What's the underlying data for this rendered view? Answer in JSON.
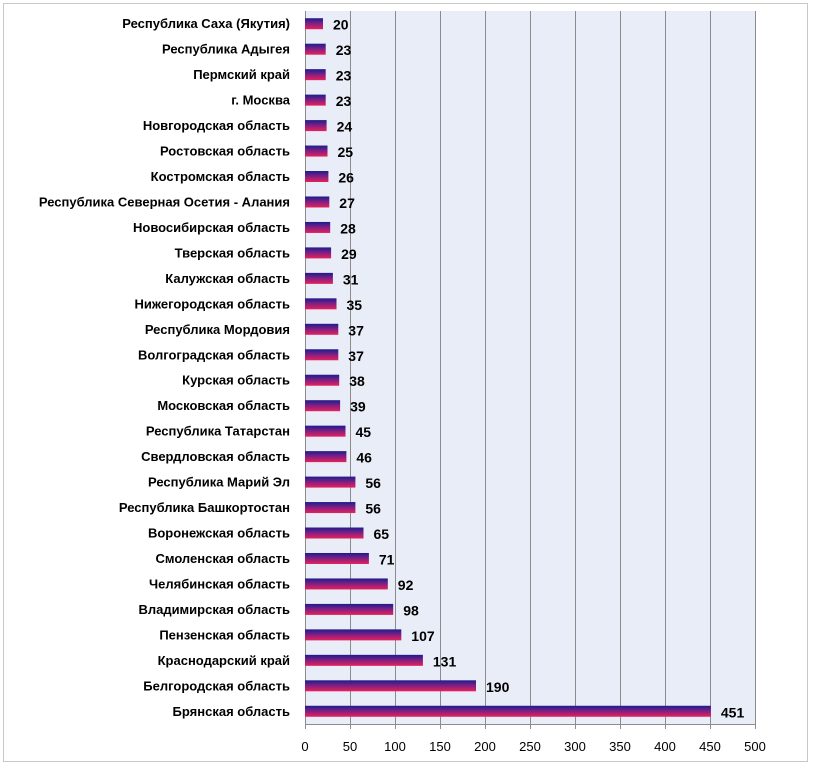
{
  "chart_data": {
    "type": "bar",
    "orientation": "horizontal",
    "title": "",
    "xlabel": "",
    "ylabel": "",
    "xlim": [
      0,
      500
    ],
    "xticks": [
      0,
      50,
      100,
      150,
      200,
      250,
      300,
      350,
      400,
      450,
      500
    ],
    "xtick_labels": [
      "0",
      "50",
      "100",
      "150",
      "200",
      "250",
      "300",
      "350",
      "400",
      "450",
      "500"
    ],
    "grid": true,
    "legend": "none",
    "colors": {
      "plot_background": "#e9edf7",
      "gridline": "#8c8c8c",
      "bar_top": "#1c1c8c",
      "bar_bottom": "#e8205a"
    },
    "categories": [
      "Республика Саха (Якутия)",
      "Республика Адыгея",
      "Пермский край",
      "г. Москва",
      "Новгородская область",
      "Ростовская область",
      "Костромская область",
      "Республика Северная Осетия - Алания",
      "Новосибирская область",
      "Тверская область",
      "Калужская область",
      "Нижегородская область",
      "Республика Мордовия",
      "Волгоградская область",
      "Курская область",
      "Московская область",
      "Республика Татарстан",
      "Свердловская область",
      "Республика Марий Эл",
      "Республика Башкортостан",
      "Воронежская область",
      "Смоленская область",
      "Челябинская область",
      "Владимирская область",
      "Пензенская область",
      "Краснодарский край",
      "Белгородская область",
      "Брянская область"
    ],
    "values": [
      20,
      23,
      23,
      23,
      24,
      25,
      26,
      27,
      28,
      29,
      31,
      35,
      37,
      37,
      38,
      39,
      45,
      46,
      56,
      56,
      65,
      71,
      92,
      98,
      107,
      131,
      190,
      451
    ],
    "data_labels": [
      "20",
      "23",
      "23",
      "23",
      "24",
      "25",
      "26",
      "27",
      "28",
      "29",
      "31",
      "35",
      "37",
      "37",
      "38",
      "39",
      "45",
      "46",
      "56",
      "56",
      "65",
      "71",
      "92",
      "98",
      "107",
      "131",
      "190",
      "451"
    ]
  }
}
